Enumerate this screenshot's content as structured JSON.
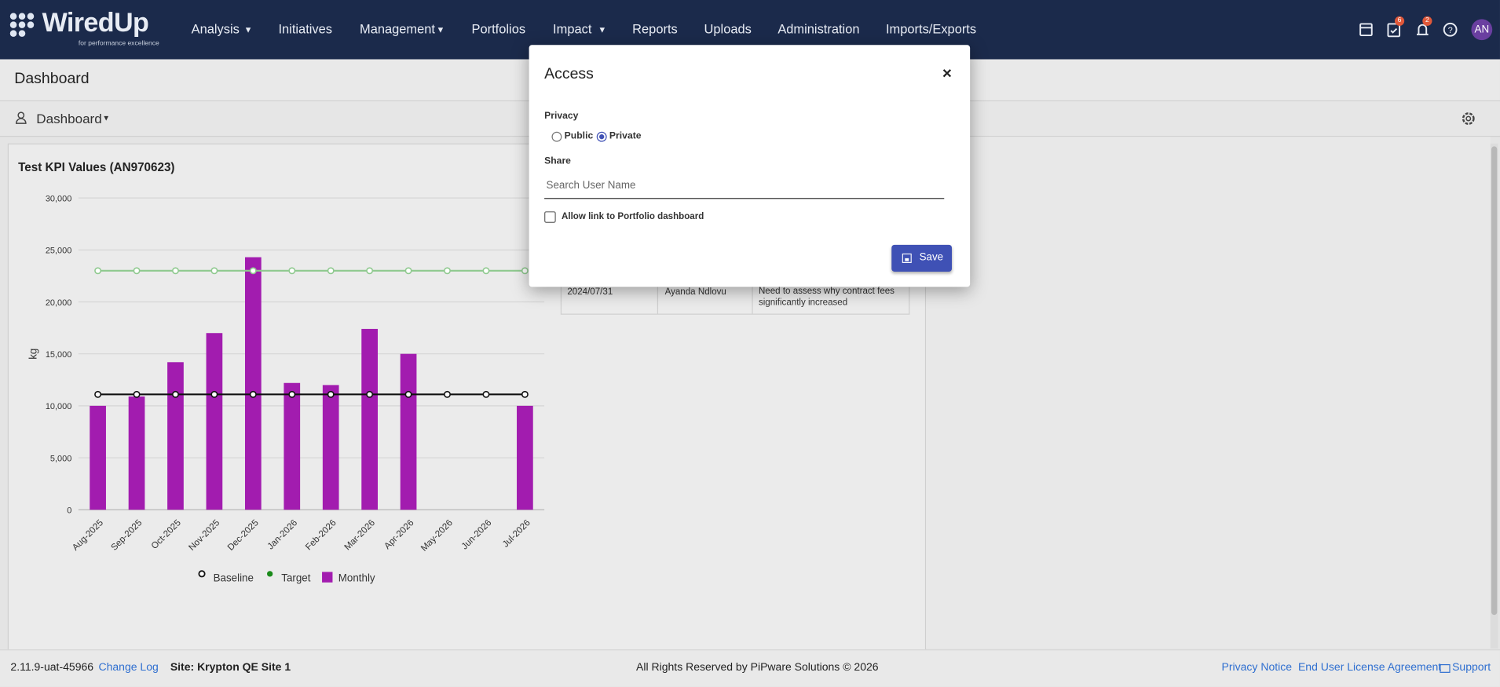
{
  "navbar": {
    "brand": "WiredUp",
    "tagline": "for performance excellence",
    "menu": [
      "Analysis",
      "Initiatives",
      "Management",
      "Portfolios",
      "Impact",
      "Reports",
      "Uploads",
      "Administration",
      "Imports/Exports"
    ],
    "task_badge": 6,
    "notification_badge": 2,
    "avatar": "AN"
  },
  "page": {
    "title": "Dashboard",
    "dashboard_selector": "Dashboard"
  },
  "chart": {
    "type": "bar",
    "title": "Test KPI Values (AN970623)",
    "y_label": "kg",
    "categories": [
      "Aug-2025",
      "Sep-2025",
      "Oct-2025",
      "Nov-2025",
      "Dec-2025",
      "Jan-2026",
      "Feb-2026",
      "Mar-2026",
      "Apr-2026",
      "May-2026",
      "Jun-2026",
      "Jul-2026"
    ],
    "series": [
      {
        "name": "Baseline",
        "type": "line",
        "color": "#111111",
        "values": [
          11100,
          11100,
          11100,
          11100,
          11100,
          11100,
          11100,
          11100,
          11100,
          11100,
          11100,
          11100
        ]
      },
      {
        "name": "Target",
        "type": "line",
        "color": "#8fc98f",
        "values": [
          23000,
          23000,
          23000,
          23000,
          23000,
          23000,
          23000,
          23000,
          23000,
          23000,
          23000,
          23000
        ]
      },
      {
        "name": "Monthly",
        "type": "bar",
        "color": "#a21caf",
        "values": [
          10000,
          10900,
          14200,
          17000,
          24300,
          12200,
          12000,
          17400,
          15000,
          null,
          null,
          10000
        ]
      }
    ],
    "ylim": [
      0,
      30000
    ],
    "yticks": [
      0,
      {
        "value": 5000,
        "label": "5,000"
      },
      {
        "value": 10000,
        "label": "10,000"
      },
      {
        "value": 15000,
        "label": "15,000"
      },
      {
        "value": 20000,
        "label": "20,000"
      },
      {
        "value": 25000,
        "label": "25,000"
      },
      {
        "value": 30000,
        "label": "30,000"
      }
    ],
    "grid": true
  },
  "table": {
    "rows": [
      [
        "2024/07/31",
        "Ayanda Ndlovu",
        "Need to assess why contract fees significantly increased"
      ]
    ]
  },
  "modal": {
    "title": "Access",
    "close": "×",
    "privacy_label": "Privacy",
    "options": [
      "Public",
      "Private"
    ],
    "share_label": "Share",
    "search_placeholder": "Search User Name",
    "checkbox_label": "Allow link to Portfolio dashboard",
    "save": "Save"
  },
  "footer": {
    "version": "2.11.9-uat-45966",
    "change_log": "Change Log",
    "site": "Site: Krypton QE Site 1",
    "copyright": "All Rights Reserved by PiPware Solutions © 2026",
    "privacy": "Privacy Notice",
    "eula": "End User License Agreement",
    "support": "Support"
  }
}
